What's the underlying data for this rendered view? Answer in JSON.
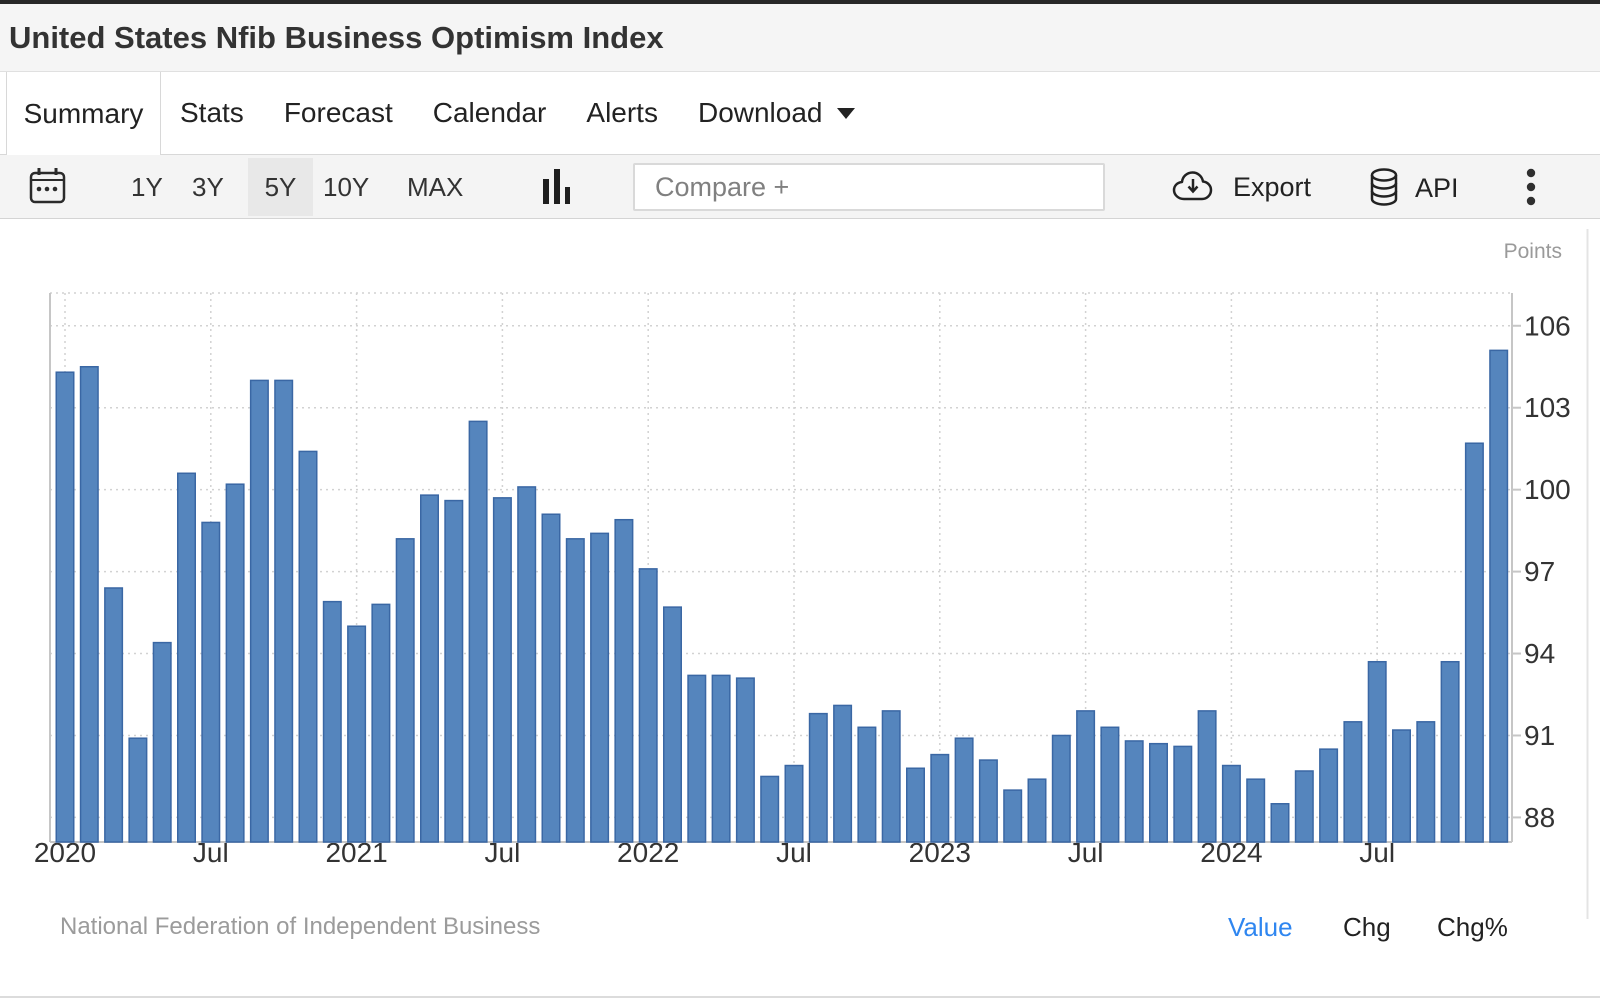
{
  "header": {
    "title": "United States Nfib Business Optimism Index"
  },
  "tabs": {
    "items": [
      "Summary",
      "Stats",
      "Forecast",
      "Calendar",
      "Alerts",
      "Download"
    ],
    "active": "Summary"
  },
  "toolbar": {
    "ranges": [
      "1Y",
      "3Y",
      "5Y",
      "10Y",
      "MAX"
    ],
    "active_range": "5Y",
    "compare_placeholder": "Compare +",
    "export_label": "Export",
    "api_label": "API",
    "icons": {
      "calendar": "calendar-icon",
      "chart_type": "bar-chart-icon",
      "export": "cloud-download-icon",
      "api": "database-icon",
      "more": "kebab-icon",
      "download_caret": "caret-down-icon"
    }
  },
  "chart_data": {
    "type": "bar",
    "title": "United States Nfib Business Optimism Index",
    "ylabel": "Points",
    "xlabel": "",
    "ylim": [
      87.1,
      107.2
    ],
    "y_ticks": [
      88,
      91,
      94,
      97,
      100,
      103,
      106
    ],
    "grid": "dotted",
    "legend_position": "none",
    "bar_color": "#5585bd",
    "bar_border": "#3a67a4",
    "x_ticks": [
      {
        "index": 0,
        "label": "2020"
      },
      {
        "index": 6,
        "label": "Jul"
      },
      {
        "index": 12,
        "label": "2021"
      },
      {
        "index": 18,
        "label": "Jul"
      },
      {
        "index": 24,
        "label": "2022"
      },
      {
        "index": 30,
        "label": "Jul"
      },
      {
        "index": 36,
        "label": "2023"
      },
      {
        "index": 42,
        "label": "Jul"
      },
      {
        "index": 48,
        "label": "2024"
      },
      {
        "index": 54,
        "label": "Jul"
      }
    ],
    "months": [
      "2020-01",
      "2020-02",
      "2020-03",
      "2020-04",
      "2020-05",
      "2020-06",
      "2020-07",
      "2020-08",
      "2020-09",
      "2020-10",
      "2020-11",
      "2020-12",
      "2021-01",
      "2021-02",
      "2021-03",
      "2021-04",
      "2021-05",
      "2021-06",
      "2021-07",
      "2021-08",
      "2021-09",
      "2021-10",
      "2021-11",
      "2021-12",
      "2022-01",
      "2022-02",
      "2022-03",
      "2022-04",
      "2022-05",
      "2022-06",
      "2022-07",
      "2022-08",
      "2022-09",
      "2022-10",
      "2022-11",
      "2022-12",
      "2023-01",
      "2023-02",
      "2023-03",
      "2023-04",
      "2023-05",
      "2023-06",
      "2023-07",
      "2023-08",
      "2023-09",
      "2023-10",
      "2023-11",
      "2023-12",
      "2024-01",
      "2024-02",
      "2024-03",
      "2024-04",
      "2024-05",
      "2024-06",
      "2024-07",
      "2024-08",
      "2024-09",
      "2024-10",
      "2024-11",
      "2024-12"
    ],
    "series": [
      {
        "name": "Nfib Business Optimism Index",
        "values": [
          104.3,
          104.5,
          96.4,
          90.9,
          94.4,
          100.6,
          98.8,
          100.2,
          104.0,
          104.0,
          101.4,
          95.9,
          95.0,
          95.8,
          98.2,
          99.8,
          99.6,
          102.5,
          99.7,
          100.1,
          99.1,
          98.2,
          98.4,
          98.9,
          97.1,
          95.7,
          93.2,
          93.2,
          93.1,
          89.5,
          89.9,
          91.8,
          92.1,
          91.3,
          91.9,
          89.8,
          90.3,
          90.9,
          90.1,
          89.0,
          89.4,
          91.0,
          91.9,
          91.3,
          90.8,
          90.7,
          90.6,
          91.9,
          89.9,
          89.4,
          88.5,
          89.7,
          90.5,
          91.5,
          93.7,
          91.2,
          91.5,
          93.7,
          101.7,
          105.1
        ]
      }
    ]
  },
  "footer": {
    "source": "National Federation of Independent Business",
    "modes": [
      "Value",
      "Chg",
      "Chg%"
    ],
    "active_mode": "Value"
  }
}
